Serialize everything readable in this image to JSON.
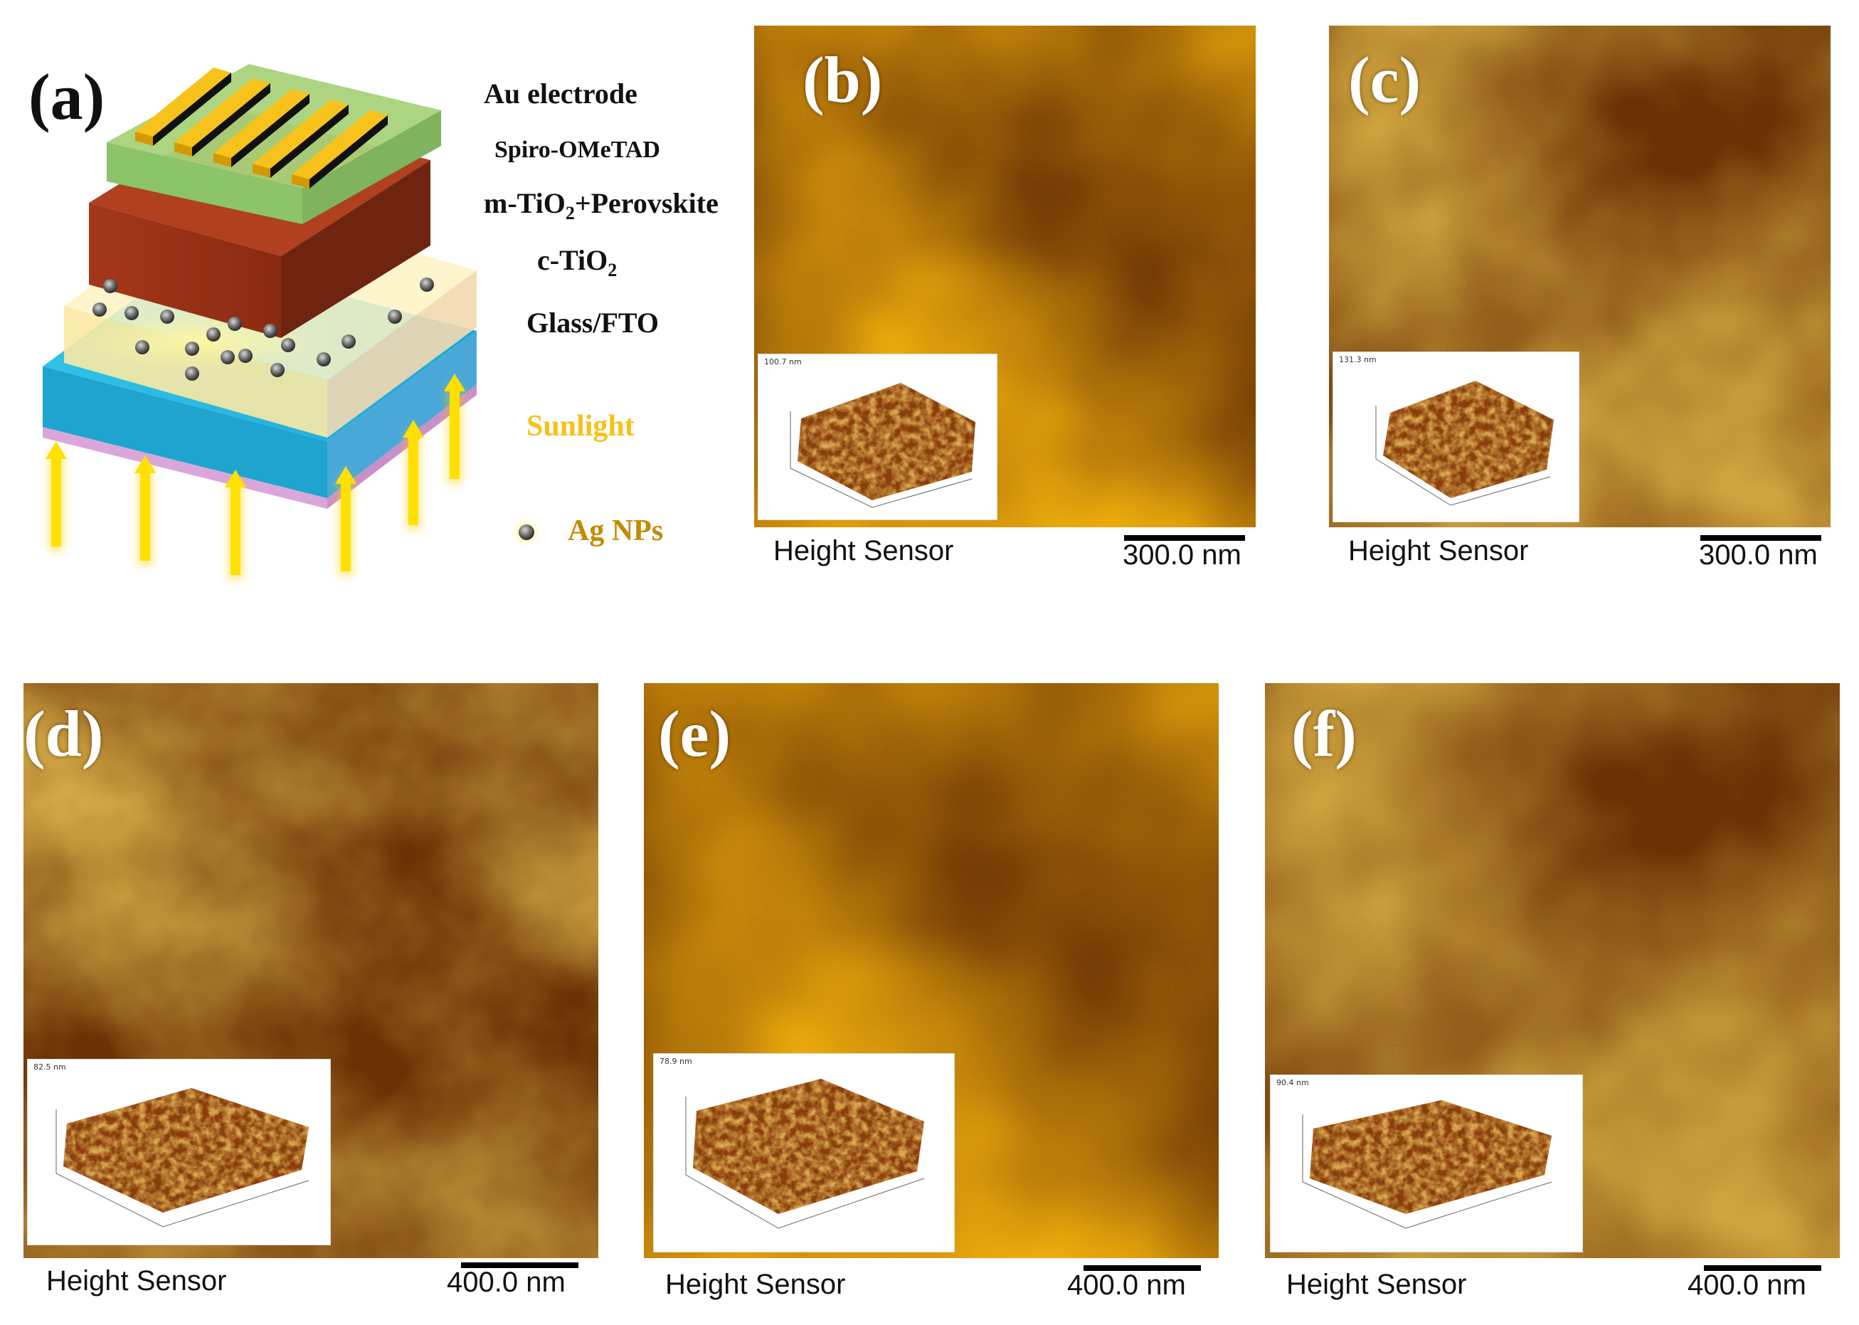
{
  "figure": {
    "panel_a": {
      "letter": "(a)",
      "layers": {
        "au": "Au electrode",
        "spiro": "Spiro-OMeTAD",
        "mtio2_prefix": "m-TiO",
        "mtio2_sub": "2",
        "mtio2_suffix": "+Perovskite",
        "ctio2_prefix": "c-TiO",
        "ctio2_sub": "2",
        "glass": "Glass/FTO"
      },
      "sunlight": "Sunlight",
      "ag_nps": "Ag NPs",
      "colors": {
        "au": "#f5c518",
        "spiro": "#9ccf6a",
        "perovskite": "#9c3417",
        "ctio2": "#fff2c0",
        "glass": "#33b5e0",
        "sunlight_text": "#f6c21a",
        "ag_text": "#c58a00"
      }
    },
    "afm_panels": [
      {
        "id": "b",
        "letter": "(b)",
        "caption": "Height Sensor",
        "scale": "300.0 nm",
        "inset_z": "100.7 nm"
      },
      {
        "id": "c",
        "letter": "(c)",
        "caption": "Height Sensor",
        "scale": "300.0 nm",
        "inset_z": "131.3 nm"
      },
      {
        "id": "d",
        "letter": "(d)",
        "caption": "Height Sensor",
        "scale": "400.0 nm",
        "inset_z": "82.5 nm"
      },
      {
        "id": "e",
        "letter": "(e)",
        "caption": "Height Sensor",
        "scale": "400.0 nm",
        "inset_z": "78.9 nm"
      },
      {
        "id": "f",
        "letter": "(f)",
        "caption": "Height Sensor",
        "scale": "400.0 nm",
        "inset_z": "90.4 nm"
      }
    ]
  }
}
